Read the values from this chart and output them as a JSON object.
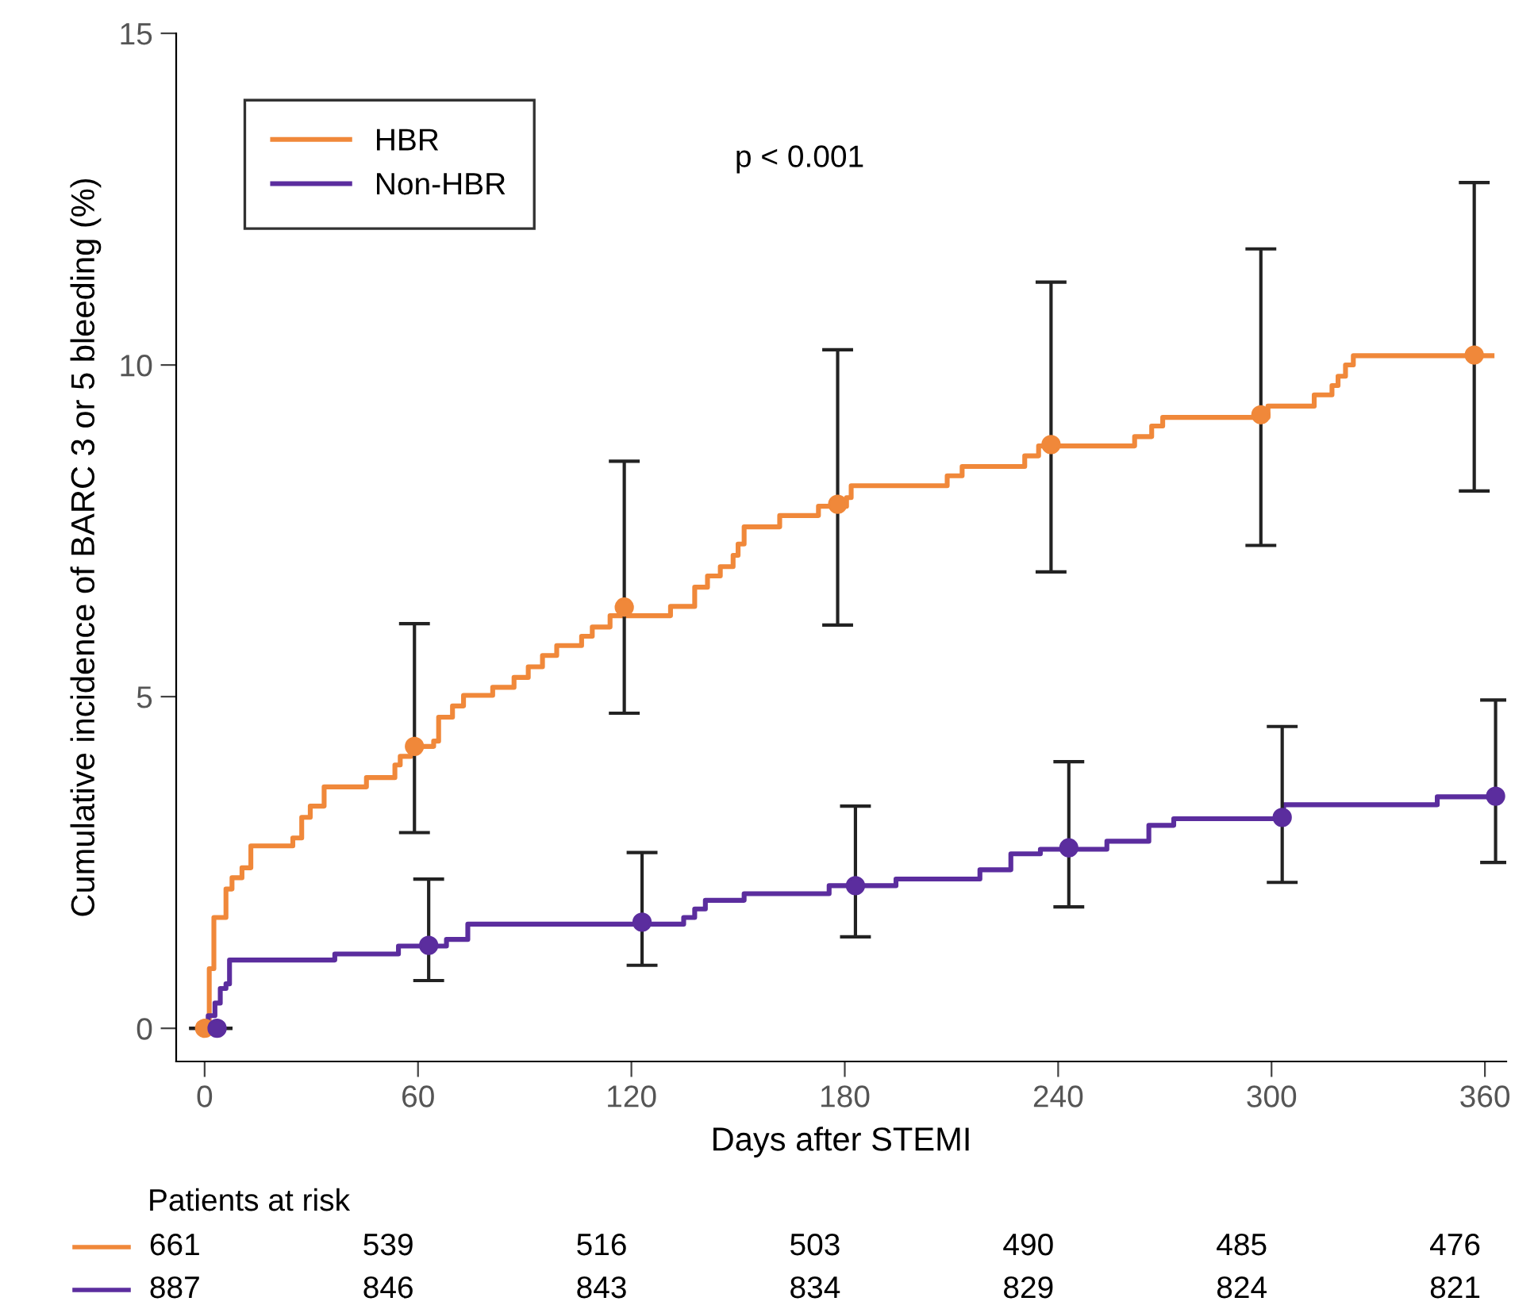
{
  "chart_data": {
    "type": "step",
    "xlabel": "Days after STEMI",
    "ylabel": "Cumulative incidence of BARC 3 or 5 bleeding (%)",
    "xlim": [
      -8,
      366
    ],
    "ylim": [
      -0.5,
      15
    ],
    "xticks": [
      0,
      60,
      120,
      180,
      240,
      300,
      360
    ],
    "yticks": [
      0,
      5,
      10,
      15
    ],
    "grid": false,
    "legend": "top left",
    "line_style": "solid",
    "annotations": [
      "p < 0.001",
      "Patients at risk",
      "661",
      "539",
      "516",
      "503",
      "490",
      "485",
      "476",
      "887",
      "846",
      "843",
      "834",
      "829",
      "824",
      "821"
    ],
    "series": [
      {
        "name": "HBR",
        "color": "#f0883a",
        "x": [
          0,
          1.3,
          2.6,
          6,
          7.7,
          10.5,
          13,
          24.8,
          27.3,
          29.7,
          33.6,
          45.5,
          53.5,
          55,
          58,
          64.4,
          65.8,
          69.7,
          72.8,
          81,
          87,
          91,
          95,
          99,
          106,
          109,
          114,
          131,
          137.8,
          141.4,
          145,
          148.6,
          150,
          151.7,
          161.7,
          172.6,
          180.5,
          181.8,
          208.8,
          213,
          230.6,
          234.5,
          261.5,
          266.3,
          269.4,
          299,
          312,
          317,
          318.7,
          320.8,
          323,
          362
        ],
        "values": [
          0,
          0.9,
          1.67,
          2.1,
          2.27,
          2.42,
          2.75,
          2.87,
          3.18,
          3.35,
          3.64,
          3.78,
          3.97,
          4.1,
          4.25,
          4.33,
          4.69,
          4.86,
          5.02,
          5.14,
          5.29,
          5.45,
          5.62,
          5.77,
          5.91,
          6.05,
          6.22,
          6.36,
          6.65,
          6.82,
          6.96,
          7.13,
          7.3,
          7.56,
          7.73,
          7.87,
          8.0,
          8.18,
          8.33,
          8.47,
          8.63,
          8.78,
          8.92,
          9.08,
          9.21,
          9.38,
          9.55,
          9.69,
          9.83,
          10.0,
          10.14,
          10.14
        ]
      },
      {
        "name": "Non-HBR",
        "color": "#5b2d9e",
        "x": [
          0,
          1,
          2.9,
          4.4,
          6,
          7,
          36.6,
          54.5,
          68,
          74,
          134.7,
          137.8,
          140.8,
          151.7,
          175.6,
          194.4,
          218,
          226.7,
          235,
          253.7,
          265.5,
          272.5,
          303.4,
          346.6,
          362
        ],
        "values": [
          0,
          0.19,
          0.38,
          0.6,
          0.67,
          1.03,
          1.12,
          1.24,
          1.34,
          1.57,
          1.67,
          1.8,
          1.93,
          2.03,
          2.15,
          2.25,
          2.39,
          2.63,
          2.7,
          2.82,
          3.06,
          3.16,
          3.37,
          3.49,
          3.49
        ]
      },
      {
        "type": "scatter",
        "color": "#f0883a",
        "marker": "circle",
        "x": [
          0,
          59,
          118,
          178,
          238,
          297,
          357
        ],
        "values": [
          0,
          4.25,
          6.35,
          7.9,
          8.8,
          9.25,
          10.15
        ],
        "errors": [
          0,
          [
            2.95,
            6.1
          ],
          [
            4.75,
            8.55
          ],
          [
            6.08,
            10.23
          ],
          [
            6.88,
            11.25
          ],
          [
            7.28,
            11.75
          ],
          [
            8.1,
            12.75
          ]
        ]
      },
      {
        "type": "scatter",
        "color": "#5b2d9e",
        "marker": "circle",
        "x": [
          3.5,
          63,
          123,
          183,
          243,
          303,
          363
        ],
        "values": [
          0,
          1.25,
          1.6,
          2.15,
          2.72,
          3.18,
          3.5
        ],
        "errors": [
          0,
          [
            0.72,
            2.25
          ],
          [
            0.95,
            2.65
          ],
          [
            1.38,
            3.35
          ],
          [
            1.83,
            4.02
          ],
          [
            2.2,
            4.55
          ],
          [
            2.5,
            4.95
          ]
        ]
      }
    ]
  }
}
